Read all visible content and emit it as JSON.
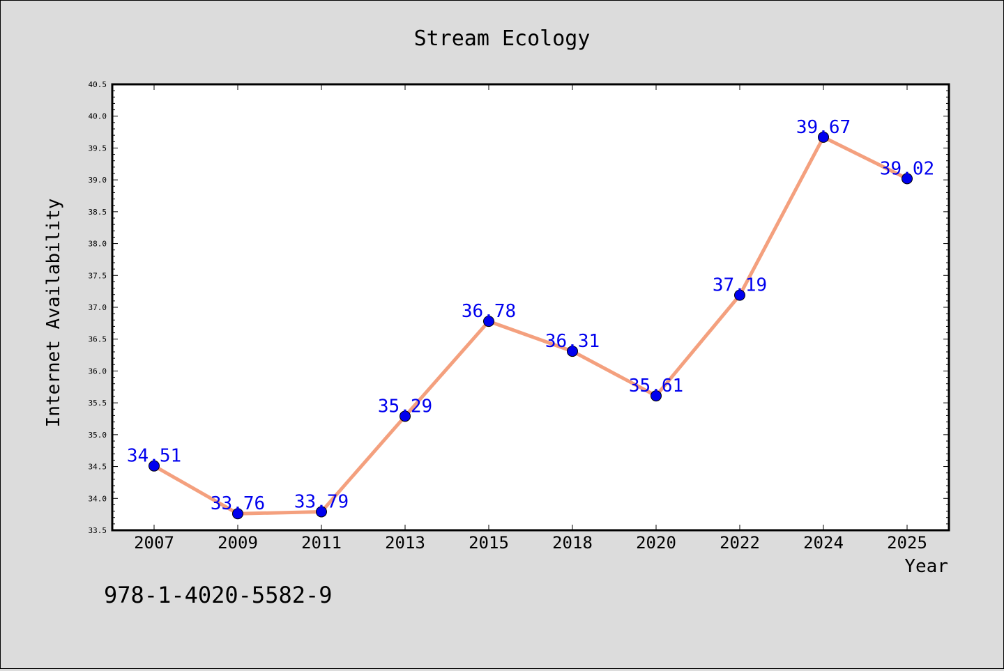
{
  "chart_data": {
    "type": "line",
    "title": "Stream Ecology",
    "xlabel": "Year",
    "ylabel": "Internet Availability",
    "categories": [
      "2007",
      "2009",
      "2011",
      "2013",
      "2015",
      "2018",
      "2020",
      "2022",
      "2024",
      "2025"
    ],
    "values": [
      34.51,
      33.76,
      33.79,
      35.29,
      36.78,
      36.31,
      35.61,
      37.19,
      39.67,
      39.02
    ],
    "data_labels": [
      "34.51",
      "33.76",
      "33.79",
      "35.29",
      "36.78",
      "36.31",
      "35.61",
      "37.19",
      "39.67",
      "39.02"
    ],
    "ylim": [
      33.5,
      40.5
    ],
    "yticks": [
      "33.5",
      "34.0",
      "34.5",
      "35.0",
      "35.5",
      "36.0",
      "36.5",
      "37.0",
      "37.5",
      "38.0",
      "38.5",
      "39.0",
      "39.5",
      "40.0",
      "40.5"
    ],
    "grid": false,
    "line_color": "#f4a07e",
    "marker_color": "#0000ee",
    "label_color": "#0000ee"
  },
  "footer_text": "978-1-4020-5582-9",
  "colors": {
    "background": "#dcdcdc",
    "plot_area": "#ffffff",
    "axis": "#000000"
  }
}
